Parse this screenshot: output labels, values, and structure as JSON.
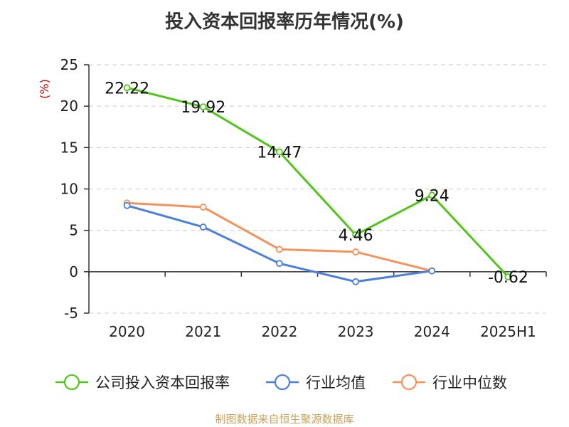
{
  "chart_data": {
    "type": "line",
    "title": "投入资本回报率历年情况(%)",
    "ylabel": "(%)",
    "xlabel": "",
    "categories": [
      "2020",
      "2021",
      "2022",
      "2023",
      "2024",
      "2025H1"
    ],
    "ylim": [
      -5,
      25
    ],
    "yticks": [
      25,
      20,
      15,
      10,
      5,
      0,
      -5
    ],
    "grid": true,
    "legend_position": "bottom",
    "series": [
      {
        "name": "公司投入资本回报率",
        "color": "#52c41a",
        "values": [
          22.22,
          19.92,
          14.47,
          4.46,
          9.24,
          -0.62
        ],
        "labels": [
          "22.22",
          "19.92",
          "14.47",
          "4.46",
          "9.24",
          "-0.62"
        ]
      },
      {
        "name": "行业均值",
        "color": "#4a7fdb",
        "values": [
          8.0,
          5.4,
          1.0,
          -1.2,
          0.1,
          null
        ]
      },
      {
        "name": "行业中位数",
        "color": "#f5925a",
        "values": [
          8.3,
          7.8,
          2.7,
          2.4,
          0.1,
          null
        ]
      }
    ],
    "source": "制图数据来自恒生聚源数据库"
  }
}
